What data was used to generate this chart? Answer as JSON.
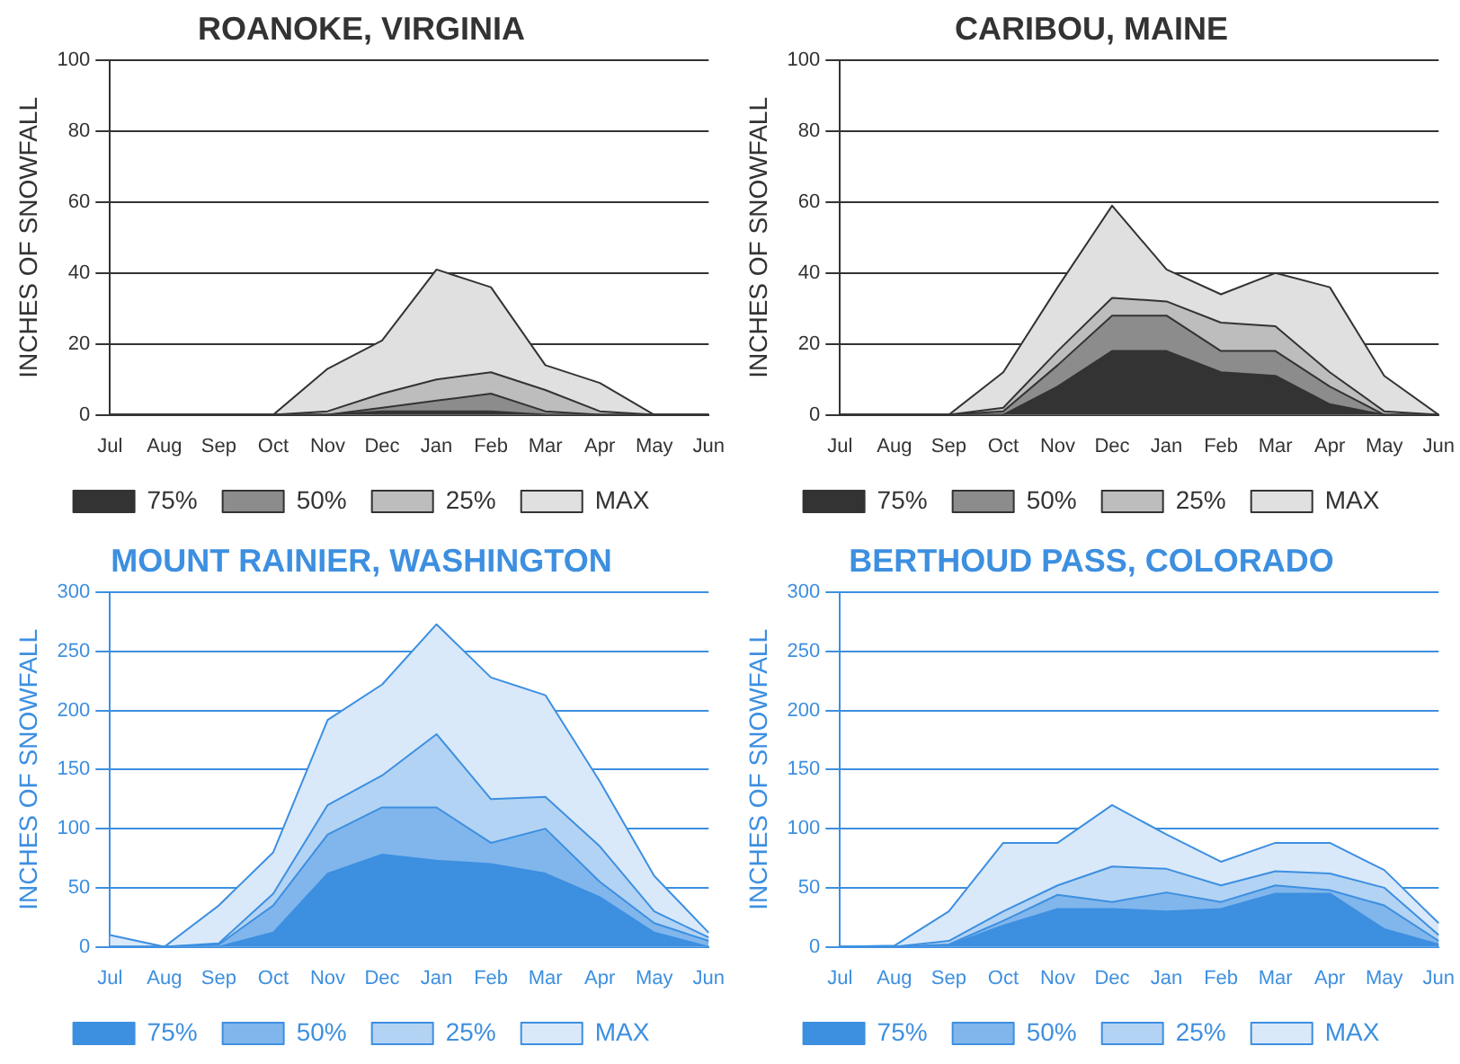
{
  "chart_data": [
    {
      "type": "area",
      "title": "ROANOKE, VIRGINIA",
      "ylabel": "INCHES OF SNOWFALL",
      "categories": [
        "Jul",
        "Aug",
        "Sep",
        "Oct",
        "Nov",
        "Dec",
        "Jan",
        "Feb",
        "Mar",
        "Apr",
        "May",
        "Jun"
      ],
      "ylim": [
        0,
        100
      ],
      "yticks": [
        0,
        20,
        40,
        60,
        80,
        100
      ],
      "grid": "y",
      "legend": "bottom",
      "series": [
        {
          "name": "75%",
          "color": "#333333",
          "values": [
            0,
            0,
            0,
            0,
            0,
            1,
            1,
            1,
            0,
            0,
            0,
            0
          ]
        },
        {
          "name": "50%",
          "color": "#8c8c8c",
          "values": [
            0,
            0,
            0,
            0,
            0,
            2,
            4,
            6,
            1,
            0,
            0,
            0
          ]
        },
        {
          "name": "25%",
          "color": "#bdbdbd",
          "values": [
            0,
            0,
            0,
            0,
            1,
            6,
            10,
            12,
            7,
            1,
            0,
            0
          ]
        },
        {
          "name": "MAX",
          "color": "#e0e0e0",
          "values": [
            0,
            0,
            0,
            0,
            13,
            21,
            41,
            36,
            14,
            9,
            0,
            0
          ]
        }
      ]
    },
    {
      "type": "area",
      "title": "CARIBOU, MAINE",
      "ylabel": "INCHES OF SNOWFALL",
      "categories": [
        "Jul",
        "Aug",
        "Sep",
        "Oct",
        "Nov",
        "Dec",
        "Jan",
        "Feb",
        "Mar",
        "Apr",
        "May",
        "Jun"
      ],
      "ylim": [
        0,
        100
      ],
      "yticks": [
        0,
        20,
        40,
        60,
        80,
        100
      ],
      "grid": "y",
      "legend": "bottom",
      "series": [
        {
          "name": "75%",
          "color": "#333333",
          "values": [
            0,
            0,
            0,
            0,
            8,
            18,
            18,
            12,
            11,
            3,
            0,
            0
          ]
        },
        {
          "name": "50%",
          "color": "#8c8c8c",
          "values": [
            0,
            0,
            0,
            1,
            14,
            28,
            28,
            18,
            18,
            8,
            0,
            0
          ]
        },
        {
          "name": "25%",
          "color": "#bdbdbd",
          "values": [
            0,
            0,
            0,
            2,
            18,
            33,
            32,
            26,
            25,
            12,
            1,
            0
          ]
        },
        {
          "name": "MAX",
          "color": "#e0e0e0",
          "values": [
            0,
            0,
            0,
            12,
            36,
            59,
            41,
            34,
            40,
            36,
            11,
            0
          ]
        }
      ]
    },
    {
      "type": "area",
      "title": "MOUNT RAINIER, WASHINGTON",
      "ylabel": "INCHES OF SNOWFALL",
      "categories": [
        "Jul",
        "Aug",
        "Sep",
        "Oct",
        "Nov",
        "Dec",
        "Jan",
        "Feb",
        "Mar",
        "Apr",
        "May",
        "Jun"
      ],
      "ylim": [
        0,
        300
      ],
      "yticks": [
        0,
        50,
        100,
        150,
        200,
        250,
        300
      ],
      "grid": "y",
      "legend": "bottom",
      "series": [
        {
          "name": "75%",
          "color": "#3d8fe0",
          "values": [
            0,
            0,
            0,
            12,
            62,
            78,
            73,
            70,
            62,
            42,
            12,
            0
          ]
        },
        {
          "name": "50%",
          "color": "#80b6ec",
          "values": [
            0,
            0,
            2,
            35,
            95,
            118,
            118,
            88,
            100,
            55,
            20,
            5
          ]
        },
        {
          "name": "25%",
          "color": "#b3d3f4",
          "values": [
            0,
            0,
            3,
            45,
            120,
            145,
            180,
            125,
            127,
            85,
            30,
            8
          ]
        },
        {
          "name": "MAX",
          "color": "#d9e9fa",
          "values": [
            10,
            0,
            35,
            80,
            192,
            222,
            273,
            228,
            213,
            140,
            60,
            12
          ]
        }
      ]
    },
    {
      "type": "area",
      "title": "BERTHOUD PASS, COLORADO",
      "ylabel": "INCHES OF SNOWFALL",
      "categories": [
        "Jul",
        "Aug",
        "Sep",
        "Oct",
        "Nov",
        "Dec",
        "Jan",
        "Feb",
        "Mar",
        "Apr",
        "May",
        "Jun"
      ],
      "ylim": [
        0,
        300
      ],
      "yticks": [
        0,
        50,
        100,
        150,
        200,
        250,
        300
      ],
      "grid": "y",
      "legend": "bottom",
      "series": [
        {
          "name": "75%",
          "color": "#3d8fe0",
          "values": [
            0,
            0,
            1,
            18,
            32,
            32,
            30,
            32,
            45,
            45,
            15,
            2
          ]
        },
        {
          "name": "50%",
          "color": "#80b6ec",
          "values": [
            0,
            0,
            2,
            22,
            44,
            38,
            46,
            38,
            52,
            48,
            35,
            5
          ]
        },
        {
          "name": "25%",
          "color": "#b3d3f4",
          "values": [
            0,
            0,
            5,
            30,
            52,
            68,
            66,
            52,
            64,
            62,
            50,
            10
          ]
        },
        {
          "name": "MAX",
          "color": "#d9e9fa",
          "values": [
            0,
            1,
            30,
            88,
            88,
            120,
            95,
            72,
            88,
            88,
            65,
            20
          ]
        }
      ]
    }
  ]
}
